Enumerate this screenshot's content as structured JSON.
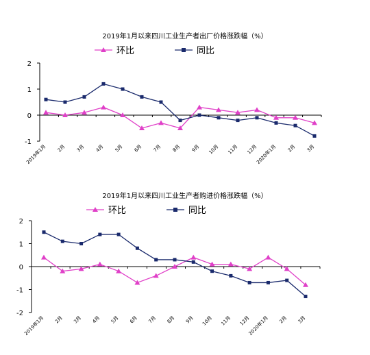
{
  "chart_data": [
    {
      "type": "line",
      "title": "2019年1月以来四川工业生产者出厂价格涨跌幅（%）",
      "categories": [
        "2019年1月",
        "2月",
        "3月",
        "4月",
        "5月",
        "6月",
        "7月",
        "8月",
        "9月",
        "10月",
        "11月",
        "12月",
        "2020年1月",
        "2月",
        "3月"
      ],
      "ylim": [
        -1,
        2
      ],
      "yticks": [
        -1,
        0,
        1,
        2
      ],
      "grid": false,
      "legend": "top",
      "series": [
        {
          "name": "环比",
          "color": "#e040c8",
          "marker": "triangle",
          "values": [
            0.1,
            0.0,
            0.1,
            0.3,
            0.0,
            -0.5,
            -0.3,
            -0.5,
            0.3,
            0.2,
            0.1,
            0.2,
            -0.1,
            -0.1,
            -0.3
          ]
        },
        {
          "name": "同比",
          "color": "#1a2a6c",
          "marker": "square",
          "values": [
            0.6,
            0.5,
            0.7,
            1.2,
            1.0,
            0.7,
            0.5,
            -0.2,
            0.0,
            -0.1,
            -0.2,
            -0.1,
            -0.3,
            -0.4,
            -0.8
          ]
        }
      ]
    },
    {
      "type": "line",
      "title": "2019年1月以来四川工业生产者购进价格涨跌幅（%）",
      "categories": [
        "2019年1月",
        "2月",
        "3月",
        "4月",
        "5月",
        "6月",
        "7月",
        "8月",
        "9月",
        "10月",
        "11月",
        "12月",
        "2020年1月",
        "2月",
        "3月"
      ],
      "ylim": [
        -2,
        2
      ],
      "yticks": [
        -2,
        -1,
        0,
        1,
        2
      ],
      "grid": false,
      "legend": "top",
      "series": [
        {
          "name": "环比",
          "color": "#e040c8",
          "marker": "triangle",
          "values": [
            0.4,
            -0.2,
            -0.1,
            0.1,
            -0.2,
            -0.7,
            -0.4,
            0.0,
            0.4,
            0.1,
            0.1,
            -0.1,
            0.4,
            -0.1,
            -0.8
          ]
        },
        {
          "name": "同比",
          "color": "#1a2a6c",
          "marker": "square",
          "values": [
            1.5,
            1.1,
            1.0,
            1.4,
            1.4,
            0.8,
            0.3,
            0.3,
            0.2,
            -0.2,
            -0.4,
            -0.7,
            -0.7,
            -0.6,
            -1.3
          ]
        }
      ]
    }
  ]
}
